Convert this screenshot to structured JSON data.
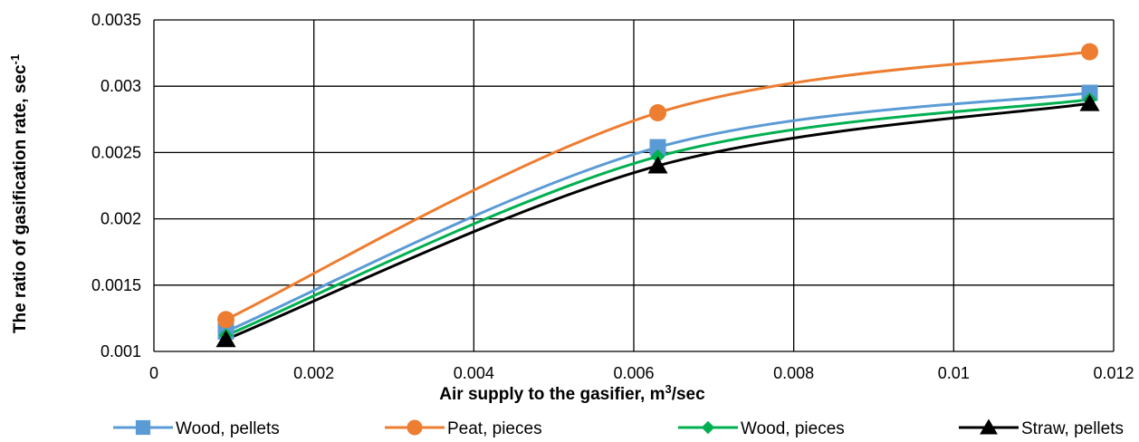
{
  "chart_data": {
    "type": "line",
    "xlabel_main": "Air supply to the gasifier, m",
    "xlabel_sup": "3",
    "xlabel_tail": "/sec",
    "ylabel_main": "The ratio of gasification rate, sec",
    "ylabel_sup": "-1",
    "xlim": [
      0,
      0.012
    ],
    "ylim": [
      0.001,
      0.0035
    ],
    "x_ticks": [
      0,
      0.002,
      0.004,
      0.006,
      0.008,
      0.01,
      0.012
    ],
    "x_tick_labels": [
      "0",
      "0.002",
      "0.004",
      "0.006",
      "0.008",
      "0.01",
      "0.012"
    ],
    "y_ticks": [
      0.001,
      0.0015,
      0.002,
      0.0025,
      0.003,
      0.0035
    ],
    "y_tick_labels": [
      "0.001",
      "0.0015",
      "0.002",
      "0.0025",
      "0.003",
      "0.0035"
    ],
    "grid": true,
    "legend_position": "bottom",
    "series": [
      {
        "name": "Wood, pellets",
        "color": "#5b9bd5",
        "marker": "square",
        "x": [
          0.0009,
          0.0063,
          0.0117
        ],
        "y": [
          0.00115,
          0.00254,
          0.00295
        ]
      },
      {
        "name": "Peat, pieces",
        "color": "#ed7d31",
        "marker": "circle",
        "x": [
          0.0009,
          0.0063,
          0.0117
        ],
        "y": [
          0.00124,
          0.0028,
          0.00326
        ]
      },
      {
        "name": "Wood, pieces",
        "color": "#00b050",
        "marker": "diamond",
        "x": [
          0.0009,
          0.0063,
          0.0117
        ],
        "y": [
          0.00112,
          0.00247,
          0.0029
        ]
      },
      {
        "name": "Straw, pellets",
        "color": "#000000",
        "marker": "triangle",
        "x": [
          0.0009,
          0.0063,
          0.0117
        ],
        "y": [
          0.00109,
          0.0024,
          0.00287
        ]
      }
    ]
  }
}
